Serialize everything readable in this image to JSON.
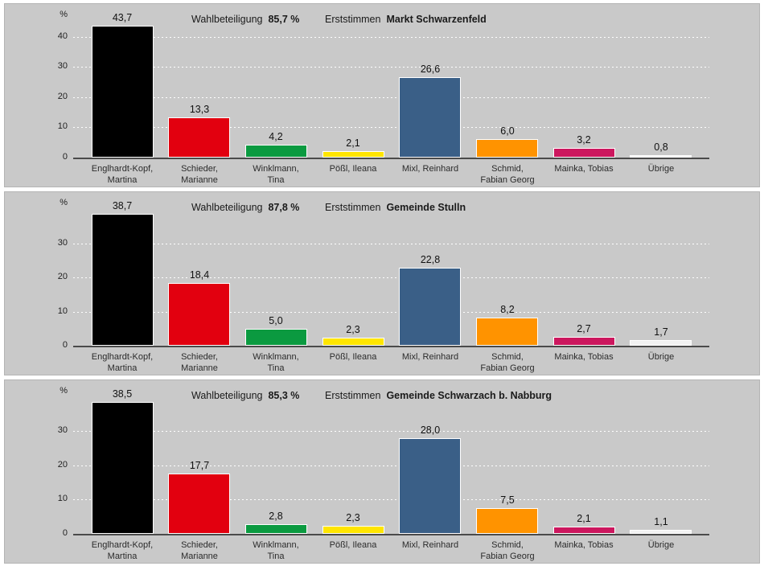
{
  "page": {
    "background": "#ffffff",
    "panel_background": "#c9c9c9"
  },
  "shared": {
    "unit_label": "%",
    "bar_colors": [
      "#000000",
      "#e2000f",
      "#0b9a40",
      "#ffe500",
      "#3a5f87",
      "#ff9300",
      "#cc175e",
      "#f2f2f2"
    ],
    "categories": [
      "Englhardt-Kopf,\nMartina",
      "Schieder,\nMarianne",
      "Winklmann,\nTina",
      "Pößl, Ileana",
      "Mixl, Reinhard",
      "Schmid,\nFabian Georg",
      "Mainka, Tobias",
      "Übrige"
    ]
  },
  "chart_data": [
    {
      "type": "bar",
      "title": "Erststimmen Markt Schwarzenfeld",
      "vote_type_label": "Erststimmen",
      "region": "Markt Schwarzenfeld",
      "turnout_label": "Wahlbeteiligung",
      "turnout_value": "85,7 %",
      "unit_label": "%",
      "categories": [
        "Englhardt-Kopf,\nMartina",
        "Schieder,\nMarianne",
        "Winklmann,\nTina",
        "Pößl, Ileana",
        "Mixl, Reinhard",
        "Schmid,\nFabian Georg",
        "Mainka, Tobias",
        "Übrige"
      ],
      "values": [
        43.7,
        13.3,
        4.2,
        2.1,
        26.6,
        6.0,
        3.2,
        0.8
      ],
      "value_labels": [
        "43,7",
        "13,3",
        "4,2",
        "2,1",
        "26,6",
        "6,0",
        "3,2",
        "0,8"
      ],
      "yticks": [
        0,
        10,
        20,
        30,
        40
      ],
      "ylim": [
        0,
        45
      ],
      "grid": "dashed-white",
      "legend": "none"
    },
    {
      "type": "bar",
      "title": "Erststimmen Gemeinde Stulln",
      "vote_type_label": "Erststimmen",
      "region": "Gemeinde Stulln",
      "turnout_label": "Wahlbeteiligung",
      "turnout_value": "87,8 %",
      "unit_label": "%",
      "categories": [
        "Englhardt-Kopf,\nMartina",
        "Schieder,\nMarianne",
        "Winklmann,\nTina",
        "Pößl, Ileana",
        "Mixl, Reinhard",
        "Schmid,\nFabian Georg",
        "Mainka, Tobias",
        "Übrige"
      ],
      "values": [
        38.7,
        18.4,
        5.0,
        2.3,
        22.8,
        8.2,
        2.7,
        1.7
      ],
      "value_labels": [
        "38,7",
        "18,4",
        "5,0",
        "2,3",
        "22,8",
        "8,2",
        "2,7",
        "1,7"
      ],
      "yticks": [
        0,
        10,
        20,
        30
      ],
      "ylim": [
        0,
        40
      ],
      "grid": "dashed-white",
      "legend": "none"
    },
    {
      "type": "bar",
      "title": "Erststimmen Gemeinde Schwarzach b. Nabburg",
      "vote_type_label": "Erststimmen",
      "region": "Gemeinde Schwarzach b. Nabburg",
      "turnout_label": "Wahlbeteiligung",
      "turnout_value": "85,3 %",
      "unit_label": "%",
      "categories": [
        "Englhardt-Kopf,\nMartina",
        "Schieder,\nMarianne",
        "Winklmann,\nTina",
        "Pößl, Ileana",
        "Mixl, Reinhard",
        "Schmid,\nFabian Georg",
        "Mainka, Tobias",
        "Übrige"
      ],
      "values": [
        38.5,
        17.7,
        2.8,
        2.3,
        28.0,
        7.5,
        2.1,
        1.1
      ],
      "value_labels": [
        "38,5",
        "17,7",
        "2,8",
        "2,3",
        "28,0",
        "7,5",
        "2,1",
        "1,1"
      ],
      "yticks": [
        0,
        10,
        20,
        30
      ],
      "ylim": [
        0,
        40
      ],
      "grid": "dashed-white",
      "legend": "none"
    }
  ]
}
